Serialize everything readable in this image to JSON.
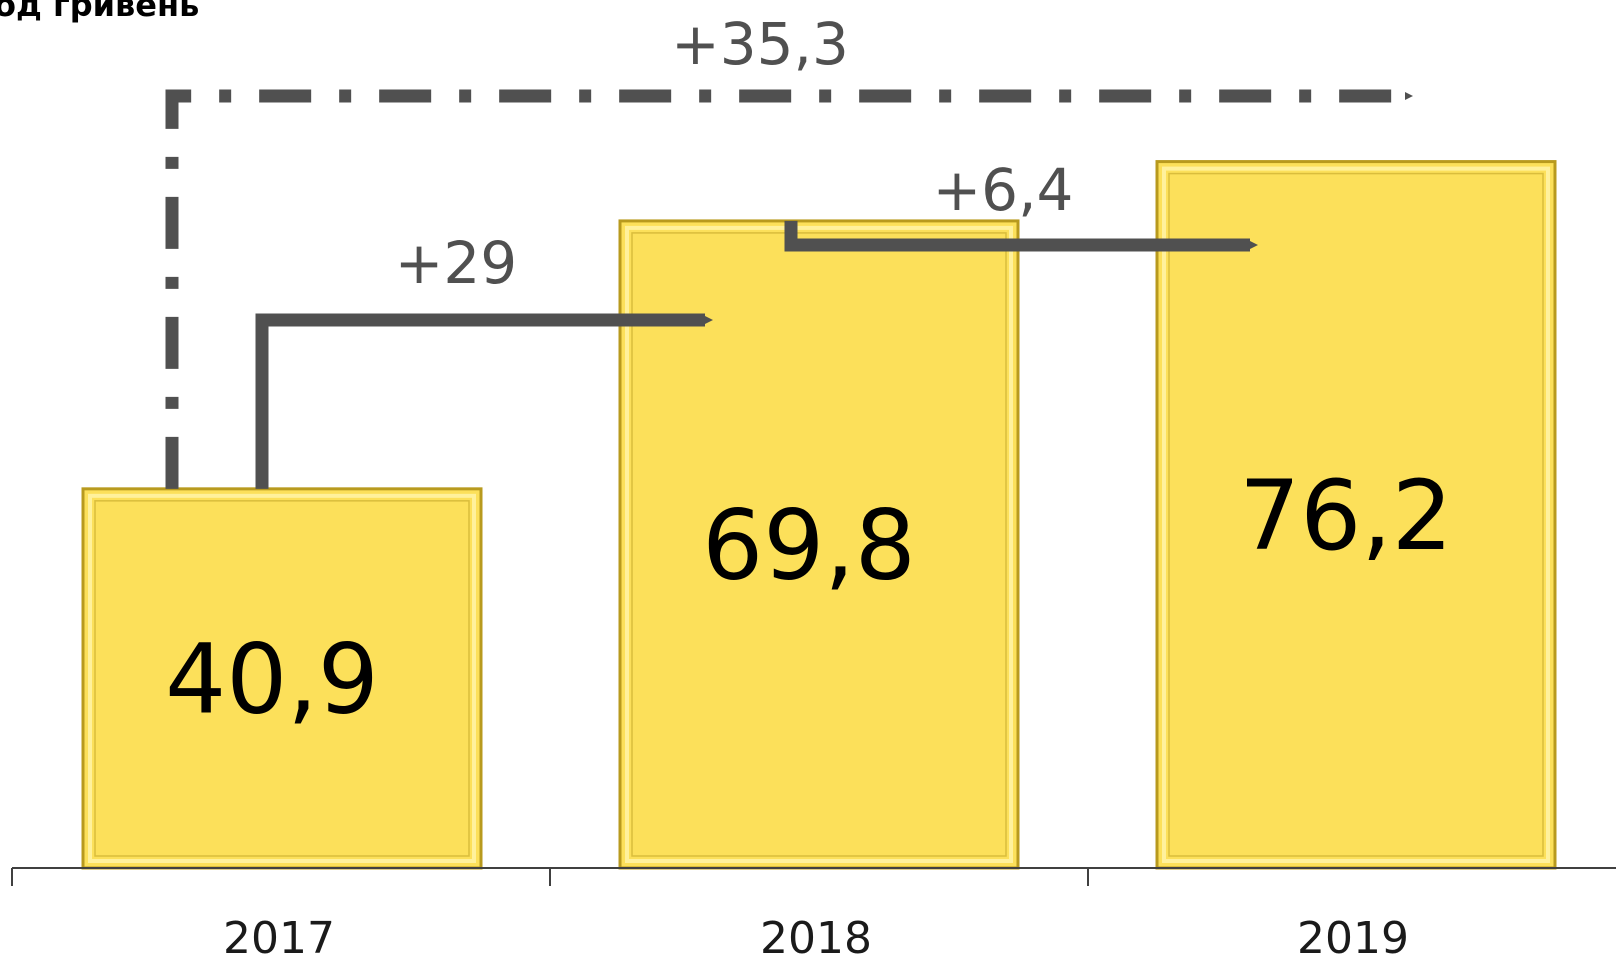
{
  "chart_data": {
    "type": "bar",
    "title": "од гривень",
    "categories": [
      "2017",
      "2018",
      "2019"
    ],
    "values": [
      40.9,
      69.8,
      76.2
    ],
    "value_labels": [
      "40,9",
      "69,8",
      "76,2"
    ],
    "ylim": [
      0,
      85
    ],
    "grid": false,
    "legend": "none",
    "annotations": [
      {
        "label": "+29",
        "from": "2017",
        "to": "2018",
        "style": "solid-arrow"
      },
      {
        "label": "+6,4",
        "from": "2018",
        "to": "2019",
        "style": "solid-arrow"
      },
      {
        "label": "+35,3",
        "from": "2017",
        "to": "2019",
        "style": "dash-dot-arrow"
      }
    ]
  },
  "colors": {
    "bar_fill": "#FCE05A",
    "bar_edge_light": "#FFF3A8",
    "bar_edge_dark": "#B89A1E",
    "arrow": "#505050",
    "axis": "#404040"
  }
}
